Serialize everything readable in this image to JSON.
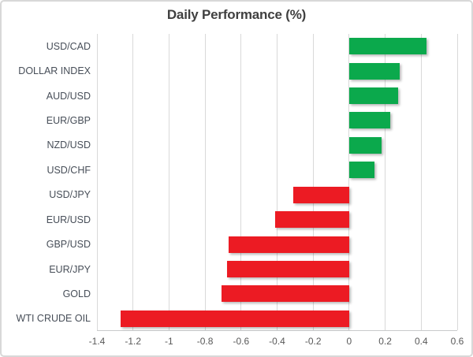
{
  "chart_data": {
    "type": "bar",
    "orientation": "horizontal",
    "title": "Daily Performance (%)",
    "categories": [
      "USD/CAD",
      "DOLLAR INDEX",
      "AUD/USD",
      "EUR/GBP",
      "NZD/USD",
      "USD/CHF",
      "USD/JPY",
      "EUR/USD",
      "GBP/USD",
      "EUR/JPY",
      "GOLD",
      "WTI CRUDE OIL"
    ],
    "values": [
      0.43,
      0.28,
      0.27,
      0.23,
      0.18,
      0.14,
      -0.31,
      -0.41,
      -0.67,
      -0.68,
      -0.71,
      -1.27
    ],
    "xlim": [
      -1.4,
      0.6
    ],
    "xtick_labels": [
      "-1.4",
      "-1.2",
      "-1",
      "-0.8",
      "-0.6",
      "-0.4",
      "-0.2",
      "0",
      "0.2",
      "0.4",
      "0.6"
    ],
    "xtick_values": [
      -1.4,
      -1.2,
      -1.0,
      -0.8,
      -0.6,
      -0.4,
      -0.2,
      0,
      0.2,
      0.4,
      0.6
    ],
    "grid": true,
    "legend": false,
    "colors": {
      "positive_bar": "#0BA94C",
      "negative_bar": "#EC1B23",
      "gridline": "#D9D9D9",
      "axis_line": "#C9CACB",
      "title_text": "#404040",
      "category_text": "#474E58",
      "tick_text": "#595959"
    }
  }
}
